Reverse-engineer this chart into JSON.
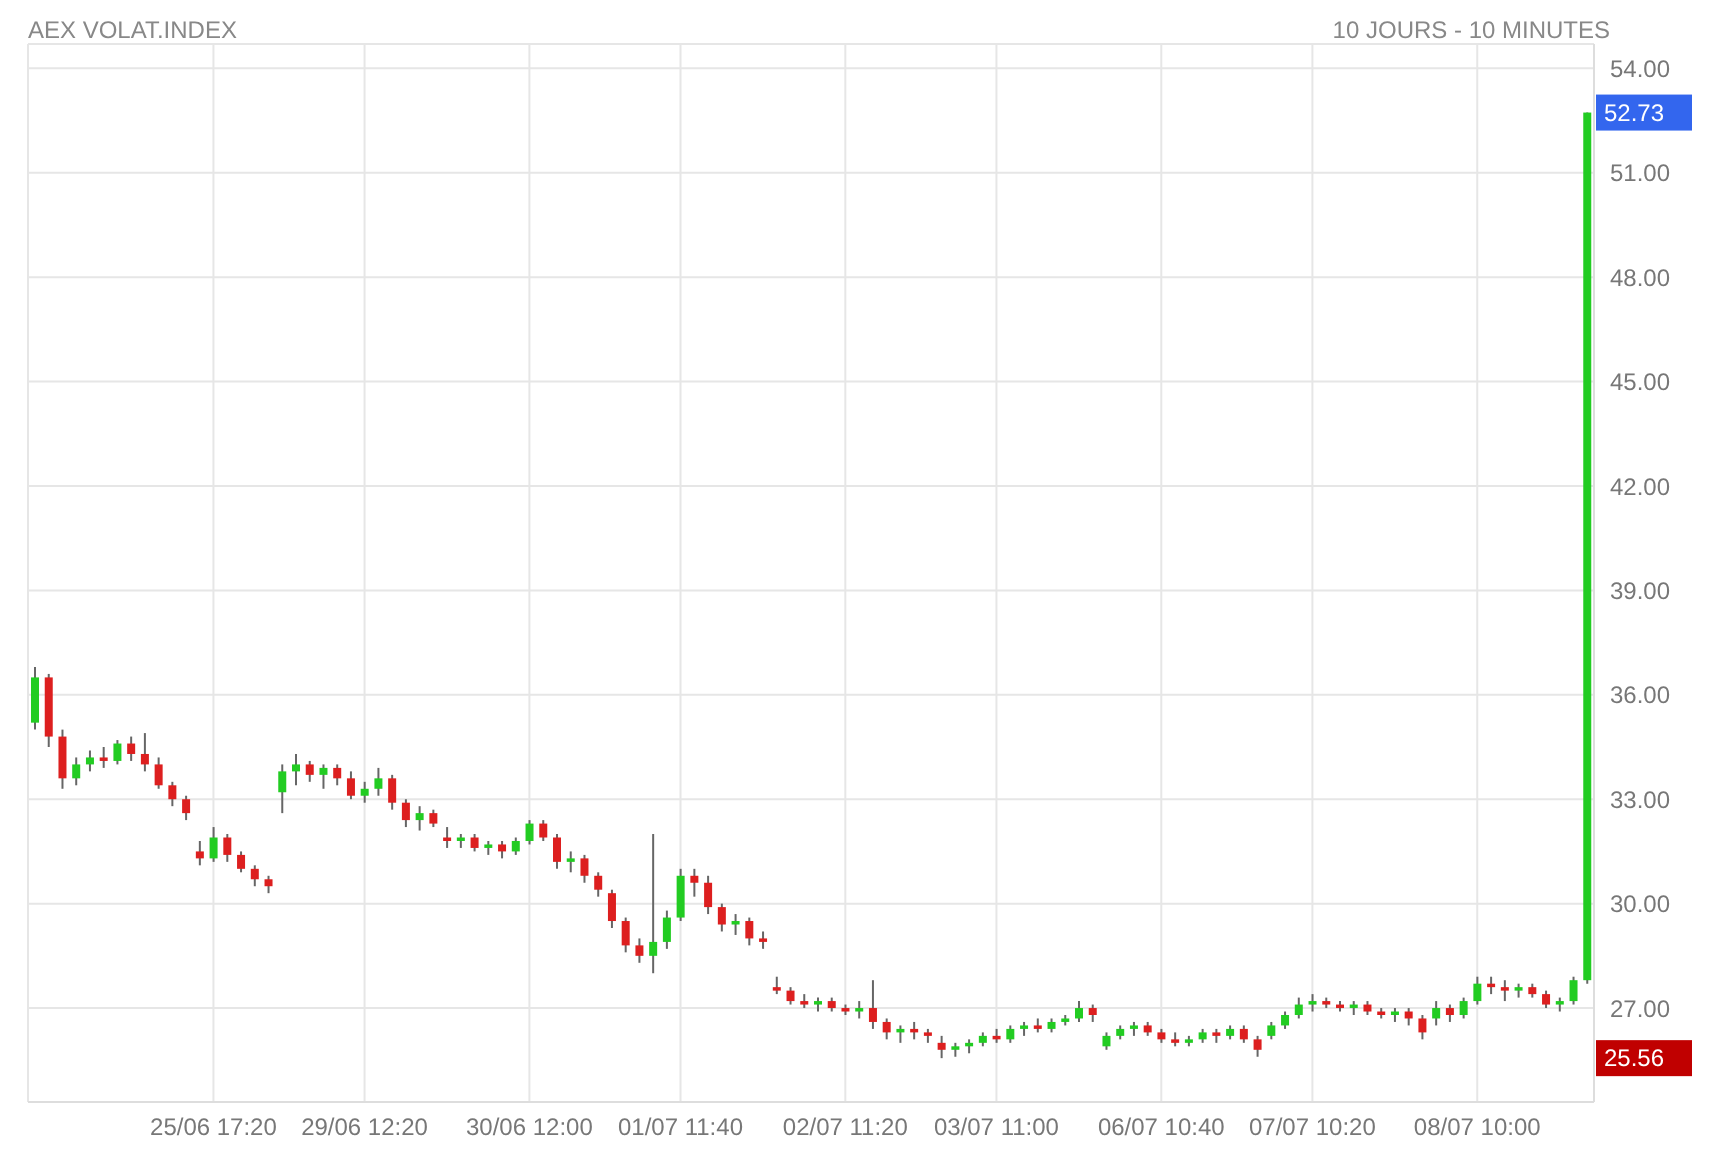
{
  "chart_data": {
    "type": "candlestick",
    "title": "AEX VOLAT.INDEX",
    "subtitle": "10 JOURS - 10 MINUTES",
    "categories": [
      null,
      null,
      null,
      null,
      null,
      null,
      null,
      null,
      null,
      null,
      null,
      null,
      null,
      "25/06 17:20",
      null,
      null,
      null,
      null,
      null,
      null,
      null,
      null,
      null,
      null,
      "29/06 12:20",
      null,
      null,
      null,
      null,
      null,
      null,
      null,
      null,
      null,
      null,
      null,
      "30/06 12:00",
      null,
      null,
      null,
      null,
      null,
      null,
      null,
      null,
      null,
      null,
      "01/07 11:40",
      null,
      null,
      null,
      null,
      null,
      null,
      null,
      null,
      null,
      null,
      null,
      "02/07 11:20",
      null,
      null,
      null,
      null,
      null,
      null,
      null,
      null,
      null,
      null,
      "03/07 11:00",
      null,
      null,
      null,
      null,
      null,
      null,
      null,
      null,
      null,
      null,
      null,
      "06/07 10:40",
      null,
      null,
      null,
      null,
      null,
      null,
      null,
      null,
      null,
      null,
      "07/07 10:20",
      null,
      null,
      null,
      null,
      null,
      null,
      null,
      null,
      null,
      null,
      null,
      "08/07 10:00",
      null,
      null,
      null,
      null,
      null,
      null,
      null,
      null
    ],
    "ohlc": [
      [
        35.2,
        36.8,
        35.0,
        36.5
      ],
      [
        36.5,
        36.6,
        34.5,
        34.8
      ],
      [
        34.8,
        35.0,
        33.3,
        33.6
      ],
      [
        33.6,
        34.2,
        33.4,
        34.0
      ],
      [
        34.0,
        34.4,
        33.8,
        34.2
      ],
      [
        34.2,
        34.5,
        33.9,
        34.1
      ],
      [
        34.1,
        34.7,
        34.0,
        34.6
      ],
      [
        34.6,
        34.8,
        34.1,
        34.3
      ],
      [
        34.3,
        34.9,
        33.8,
        34.0
      ],
      [
        34.0,
        34.2,
        33.3,
        33.4
      ],
      [
        33.4,
        33.5,
        32.8,
        33.0
      ],
      [
        33.0,
        33.1,
        32.4,
        32.6
      ],
      [
        31.5,
        31.8,
        31.1,
        31.3
      ],
      [
        31.3,
        32.2,
        31.2,
        31.9
      ],
      [
        31.9,
        32.0,
        31.2,
        31.4
      ],
      [
        31.4,
        31.5,
        30.9,
        31.0
      ],
      [
        31.0,
        31.1,
        30.5,
        30.7
      ],
      [
        30.7,
        30.8,
        30.3,
        30.5
      ],
      [
        33.2,
        34.0,
        32.6,
        33.8
      ],
      [
        33.8,
        34.3,
        33.4,
        34.0
      ],
      [
        34.0,
        34.1,
        33.5,
        33.7
      ],
      [
        33.7,
        34.0,
        33.3,
        33.9
      ],
      [
        33.9,
        34.0,
        33.4,
        33.6
      ],
      [
        33.6,
        33.8,
        33.0,
        33.1
      ],
      [
        33.1,
        33.5,
        32.9,
        33.3
      ],
      [
        33.3,
        33.9,
        33.1,
        33.6
      ],
      [
        33.6,
        33.7,
        32.7,
        32.9
      ],
      [
        32.9,
        33.0,
        32.2,
        32.4
      ],
      [
        32.4,
        32.8,
        32.1,
        32.6
      ],
      [
        32.6,
        32.7,
        32.2,
        32.3
      ],
      [
        31.9,
        32.2,
        31.6,
        31.8
      ],
      [
        31.8,
        32.0,
        31.6,
        31.9
      ],
      [
        31.9,
        32.0,
        31.5,
        31.6
      ],
      [
        31.6,
        31.8,
        31.4,
        31.7
      ],
      [
        31.7,
        31.8,
        31.3,
        31.5
      ],
      [
        31.5,
        31.9,
        31.4,
        31.8
      ],
      [
        31.8,
        32.4,
        31.7,
        32.3
      ],
      [
        32.3,
        32.4,
        31.8,
        31.9
      ],
      [
        31.9,
        32.0,
        31.0,
        31.2
      ],
      [
        31.2,
        31.5,
        30.9,
        31.3
      ],
      [
        31.3,
        31.4,
        30.6,
        30.8
      ],
      [
        30.8,
        30.9,
        30.2,
        30.4
      ],
      [
        30.3,
        30.4,
        29.3,
        29.5
      ],
      [
        29.5,
        29.6,
        28.6,
        28.8
      ],
      [
        28.8,
        29.0,
        28.3,
        28.5
      ],
      [
        28.5,
        32.0,
        28.0,
        28.9
      ],
      [
        28.9,
        29.8,
        28.7,
        29.6
      ],
      [
        29.6,
        31.0,
        29.5,
        30.8
      ],
      [
        30.8,
        31.0,
        30.2,
        30.6
      ],
      [
        30.6,
        30.8,
        29.7,
        29.9
      ],
      [
        29.9,
        30.0,
        29.2,
        29.4
      ],
      [
        29.4,
        29.7,
        29.1,
        29.5
      ],
      [
        29.5,
        29.6,
        28.8,
        29.0
      ],
      [
        29.0,
        29.2,
        28.7,
        28.9
      ],
      [
        27.6,
        27.9,
        27.4,
        27.5
      ],
      [
        27.5,
        27.6,
        27.1,
        27.2
      ],
      [
        27.2,
        27.4,
        27.0,
        27.1
      ],
      [
        27.1,
        27.3,
        26.9,
        27.2
      ],
      [
        27.2,
        27.3,
        26.9,
        27.0
      ],
      [
        27.0,
        27.1,
        26.8,
        26.9
      ],
      [
        26.9,
        27.2,
        26.7,
        27.0
      ],
      [
        27.0,
        27.8,
        26.4,
        26.6
      ],
      [
        26.6,
        26.7,
        26.1,
        26.3
      ],
      [
        26.3,
        26.5,
        26.0,
        26.4
      ],
      [
        26.4,
        26.6,
        26.1,
        26.3
      ],
      [
        26.3,
        26.4,
        26.0,
        26.2
      ],
      [
        26.0,
        26.2,
        25.56,
        25.8
      ],
      [
        25.8,
        26.0,
        25.6,
        25.9
      ],
      [
        25.9,
        26.1,
        25.7,
        26.0
      ],
      [
        26.0,
        26.3,
        25.9,
        26.2
      ],
      [
        26.2,
        26.4,
        26.0,
        26.1
      ],
      [
        26.1,
        26.5,
        26.0,
        26.4
      ],
      [
        26.4,
        26.6,
        26.2,
        26.5
      ],
      [
        26.5,
        26.7,
        26.3,
        26.4
      ],
      [
        26.4,
        26.7,
        26.3,
        26.6
      ],
      [
        26.6,
        26.8,
        26.5,
        26.7
      ],
      [
        26.7,
        27.2,
        26.6,
        27.0
      ],
      [
        27.0,
        27.1,
        26.6,
        26.8
      ],
      [
        25.9,
        26.3,
        25.8,
        26.2
      ],
      [
        26.2,
        26.5,
        26.1,
        26.4
      ],
      [
        26.4,
        26.6,
        26.2,
        26.5
      ],
      [
        26.5,
        26.6,
        26.2,
        26.3
      ],
      [
        26.3,
        26.4,
        26.0,
        26.1
      ],
      [
        26.1,
        26.3,
        25.9,
        26.0
      ],
      [
        26.0,
        26.2,
        25.9,
        26.1
      ],
      [
        26.1,
        26.4,
        26.0,
        26.3
      ],
      [
        26.3,
        26.4,
        26.0,
        26.2
      ],
      [
        26.2,
        26.5,
        26.1,
        26.4
      ],
      [
        26.4,
        26.5,
        26.0,
        26.1
      ],
      [
        26.1,
        26.2,
        25.6,
        25.8
      ],
      [
        26.2,
        26.6,
        26.1,
        26.5
      ],
      [
        26.5,
        26.9,
        26.4,
        26.8
      ],
      [
        26.8,
        27.3,
        26.7,
        27.1
      ],
      [
        27.1,
        27.4,
        26.9,
        27.2
      ],
      [
        27.2,
        27.3,
        27.0,
        27.1
      ],
      [
        27.1,
        27.2,
        26.9,
        27.0
      ],
      [
        27.0,
        27.2,
        26.8,
        27.1
      ],
      [
        27.1,
        27.2,
        26.8,
        26.9
      ],
      [
        26.9,
        27.0,
        26.7,
        26.8
      ],
      [
        26.8,
        27.0,
        26.6,
        26.9
      ],
      [
        26.9,
        27.0,
        26.5,
        26.7
      ],
      [
        26.7,
        26.8,
        26.1,
        26.3
      ],
      [
        26.7,
        27.2,
        26.5,
        27.0
      ],
      [
        27.0,
        27.1,
        26.6,
        26.8
      ],
      [
        26.8,
        27.3,
        26.7,
        27.2
      ],
      [
        27.2,
        27.9,
        27.1,
        27.7
      ],
      [
        27.7,
        27.9,
        27.4,
        27.6
      ],
      [
        27.6,
        27.8,
        27.2,
        27.5
      ],
      [
        27.5,
        27.7,
        27.3,
        27.6
      ],
      [
        27.6,
        27.7,
        27.3,
        27.4
      ],
      [
        27.4,
        27.5,
        27.0,
        27.1
      ],
      [
        27.1,
        27.3,
        26.9,
        27.2
      ],
      [
        27.2,
        27.9,
        27.1,
        27.8
      ],
      [
        27.8,
        52.73,
        27.7,
        52.73
      ]
    ],
    "colors": [
      "#22cc22",
      "#dd1f1f",
      "#dd1f1f",
      "#22cc22",
      "#22cc22",
      "#dd1f1f",
      "#22cc22",
      "#dd1f1f",
      "#dd1f1f",
      "#dd1f1f",
      "#dd1f1f",
      "#dd1f1f",
      "#dd1f1f",
      "#22cc22",
      "#dd1f1f",
      "#dd1f1f",
      "#dd1f1f",
      "#dd1f1f",
      "#22cc22",
      "#22cc22",
      "#dd1f1f",
      "#22cc22",
      "#dd1f1f",
      "#dd1f1f",
      "#22cc22",
      "#22cc22",
      "#dd1f1f",
      "#dd1f1f",
      "#22cc22",
      "#dd1f1f",
      "#dd1f1f",
      "#22cc22",
      "#dd1f1f",
      "#22cc22",
      "#dd1f1f",
      "#22cc22",
      "#22cc22",
      "#dd1f1f",
      "#dd1f1f",
      "#22cc22",
      "#dd1f1f",
      "#dd1f1f",
      "#dd1f1f",
      "#dd1f1f",
      "#dd1f1f",
      "#22cc22",
      "#22cc22",
      "#22cc22",
      "#dd1f1f",
      "#dd1f1f",
      "#dd1f1f",
      "#22cc22",
      "#dd1f1f",
      "#dd1f1f",
      "#dd1f1f",
      "#dd1f1f",
      "#dd1f1f",
      "#22cc22",
      "#dd1f1f",
      "#dd1f1f",
      "#22cc22",
      "#dd1f1f",
      "#dd1f1f",
      "#22cc22",
      "#dd1f1f",
      "#dd1f1f",
      "#dd1f1f",
      "#22cc22",
      "#22cc22",
      "#22cc22",
      "#dd1f1f",
      "#22cc22",
      "#22cc22",
      "#dd1f1f",
      "#22cc22",
      "#22cc22",
      "#22cc22",
      "#dd1f1f",
      "#22cc22",
      "#22cc22",
      "#22cc22",
      "#dd1f1f",
      "#dd1f1f",
      "#dd1f1f",
      "#22cc22",
      "#22cc22",
      "#dd1f1f",
      "#22cc22",
      "#dd1f1f",
      "#dd1f1f",
      "#22cc22",
      "#22cc22",
      "#22cc22",
      "#22cc22",
      "#dd1f1f",
      "#dd1f1f",
      "#22cc22",
      "#dd1f1f",
      "#dd1f1f",
      "#22cc22",
      "#dd1f1f",
      "#dd1f1f",
      "#22cc22",
      "#dd1f1f",
      "#22cc22",
      "#22cc22",
      "#dd1f1f",
      "#dd1f1f",
      "#22cc22",
      "#dd1f1f",
      "#dd1f1f",
      "#22cc22",
      "#22cc22",
      "#22cc22"
    ],
    "ylim": [
      24.3,
      54.7
    ],
    "yticks": [
      {
        "value": 27,
        "label": "27.00"
      },
      {
        "value": 30,
        "label": "30.00"
      },
      {
        "value": 33,
        "label": "33.00"
      },
      {
        "value": 36,
        "label": "36.00"
      },
      {
        "value": 39,
        "label": "39.00"
      },
      {
        "value": 42,
        "label": "42.00"
      },
      {
        "value": 45,
        "label": "45.00"
      },
      {
        "value": 48,
        "label": "48.00"
      },
      {
        "value": 51,
        "label": "51.00"
      },
      {
        "value": 54,
        "label": "54.00"
      }
    ],
    "annotations": [
      "52.73",
      "25.56"
    ],
    "grid": true
  }
}
